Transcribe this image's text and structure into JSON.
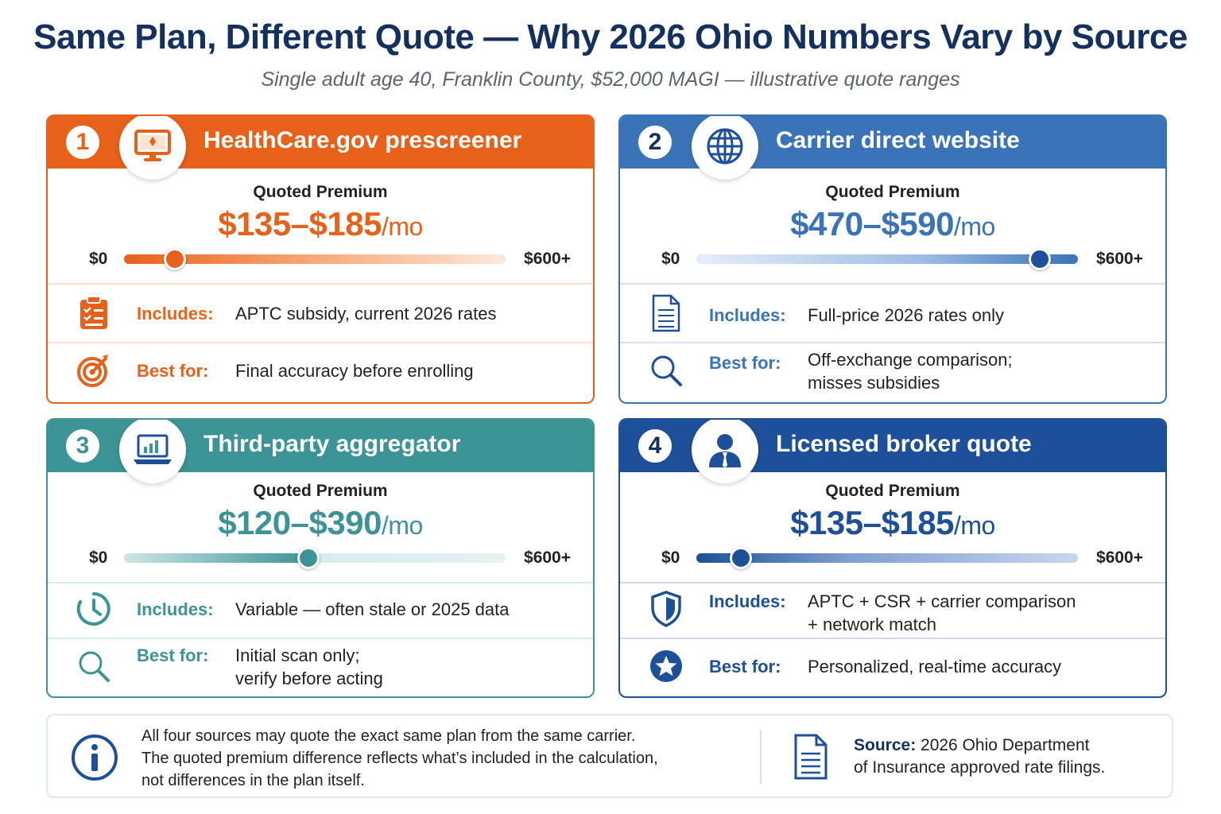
{
  "header": {
    "title": "Same Plan, Different Quote — Why 2026 Ohio Numbers Vary by Source",
    "subtitle": "Single adult age 40, Franklin County, $52,000 MAGI — illustrative quote ranges"
  },
  "slider_scale": {
    "min_label": "$0",
    "max_label": "$600+",
    "min": 0,
    "max": 600
  },
  "cards": [
    {
      "number": "1",
      "title": "HealthCare.gov prescreener",
      "quoted_label": "Quoted Premium",
      "price": "$135–$185",
      "unit": "/mo",
      "range_low": 135,
      "range_high": 185,
      "knob_value": 80,
      "includes_label": "Includes:",
      "includes": "APTC subsidy, current 2026 rates",
      "best_label": "Best for:",
      "best": "Final accuracy before enrolling",
      "accent": "#e8611a",
      "badge_icon": "monitor-icon",
      "includes_icon": "clipboard-checklist-icon",
      "best_icon": "target-icon"
    },
    {
      "number": "2",
      "title": "Carrier direct website",
      "quoted_label": "Quoted Premium",
      "price": "$470–$590",
      "unit": "/mo",
      "range_low": 470,
      "range_high": 590,
      "knob_value": 540,
      "includes_label": "Includes:",
      "includes": "Full-price 2026 rates only",
      "best_label": "Best for:",
      "best": "Off-exchange comparison;\nmisses subsidies",
      "accent": "#3b73b9",
      "badge_icon": "globe-icon",
      "includes_icon": "document-icon",
      "best_icon": "search-icon"
    },
    {
      "number": "3",
      "title": "Third-party aggregator",
      "quoted_label": "Quoted Premium",
      "price": "$120–$390",
      "unit": "/mo",
      "range_low": 120,
      "range_high": 390,
      "knob_value": 290,
      "includes_label": "Includes:",
      "includes": "Variable — often stale or 2025 data",
      "best_label": "Best for:",
      "best": "Initial scan only;\nverify before acting",
      "accent": "#3d9497",
      "badge_icon": "laptop-chart-icon",
      "includes_icon": "clock-icon",
      "best_icon": "search-icon"
    },
    {
      "number": "4",
      "title": "Licensed broker quote",
      "quoted_label": "Quoted Premium",
      "price": "$135–$185",
      "unit": "/mo",
      "range_low": 135,
      "range_high": 185,
      "knob_value": 70,
      "includes_label": "Includes:",
      "includes": "APTC + CSR + carrier comparison\n+ network match",
      "best_label": "Best for:",
      "best": "Personalized, real-time accuracy",
      "accent": "#1e4f99",
      "badge_icon": "person-icon",
      "includes_icon": "shield-icon",
      "best_icon": "star-badge-icon"
    }
  ],
  "footer": {
    "note": "All four sources may quote the exact same plan from the same carrier.\nThe quoted premium difference reflects what’s included in the calculation,\nnot differences in the plan itself.",
    "source_label": "Source:",
    "source_text": " 2026 Ohio Department\nof Insurance approved rate filings.",
    "info_icon": "info-icon",
    "doc_icon": "document-icon"
  }
}
